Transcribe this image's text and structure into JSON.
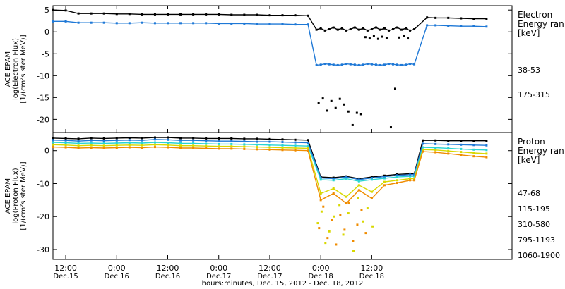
{
  "colors": {
    "black": "#000000",
    "blue": "#1e78d6",
    "cyan": "#2ad4d4",
    "yellow": "#d8d800",
    "orange": "#f08c00"
  },
  "chart_data": [
    {
      "type": "scatter",
      "panel": "electron",
      "ylabel": [
        "ACE EPAM",
        "log(Electron Flux)",
        "[1/(cm²s ster MeV)]"
      ],
      "ylim": [
        -23,
        6
      ],
      "yticks": [
        5,
        0,
        -5,
        -10,
        -15,
        -20
      ],
      "legend_title": [
        "Electron",
        "Energy ran",
        "[keV]"
      ],
      "series": [
        {
          "name": "38-53",
          "color": "black",
          "x": [
            0,
            3,
            6,
            9,
            12,
            15,
            18,
            21,
            24,
            27,
            30,
            33,
            36,
            39,
            42,
            45,
            48,
            51,
            54,
            57,
            60,
            62,
            63,
            64,
            65,
            66,
            67,
            68,
            69,
            70,
            71,
            72,
            73,
            74,
            75,
            76,
            77,
            78,
            79,
            80,
            81,
            82,
            83,
            84,
            85,
            88,
            90,
            93,
            96,
            99,
            102
          ],
          "y": [
            5.0,
            4.9,
            4.2,
            4.2,
            4.2,
            4.1,
            4.1,
            4.0,
            4.0,
            4.0,
            4.0,
            4.0,
            4.0,
            4.0,
            3.9,
            3.9,
            3.9,
            3.8,
            3.8,
            3.8,
            3.7,
            0.5,
            0.8,
            0.3,
            0.6,
            1.0,
            0.5,
            0.8,
            0.3,
            0.6,
            1.0,
            0.5,
            0.8,
            0.3,
            0.6,
            1.0,
            0.5,
            0.8,
            0.3,
            0.6,
            1.0,
            0.5,
            0.8,
            0.3,
            0.6,
            3.3,
            3.2,
            3.2,
            3.1,
            3.0,
            3.0
          ]
        },
        {
          "name": "175-315",
          "color": "blue",
          "x": [
            0,
            3,
            6,
            9,
            12,
            15,
            18,
            21,
            24,
            27,
            30,
            33,
            36,
            39,
            42,
            45,
            48,
            51,
            54,
            57,
            60,
            62,
            63,
            64,
            65,
            66,
            67,
            68,
            69,
            70,
            71,
            72,
            73,
            74,
            75,
            76,
            77,
            78,
            79,
            80,
            81,
            82,
            83,
            84,
            85,
            88,
            90,
            93,
            96,
            99,
            102
          ],
          "y": [
            2.4,
            2.4,
            2.1,
            2.1,
            2.1,
            2.0,
            2.0,
            2.1,
            2.0,
            2.0,
            2.0,
            2.0,
            2.0,
            1.9,
            1.9,
            1.9,
            1.8,
            1.8,
            1.8,
            1.7,
            1.7,
            -7.6,
            -7.5,
            -7.3,
            -7.4,
            -7.5,
            -7.6,
            -7.5,
            -7.3,
            -7.4,
            -7.5,
            -7.6,
            -7.5,
            -7.3,
            -7.4,
            -7.5,
            -7.6,
            -7.5,
            -7.3,
            -7.4,
            -7.5,
            -7.6,
            -7.5,
            -7.3,
            -7.4,
            1.5,
            1.5,
            1.4,
            1.3,
            1.3,
            1.2
          ]
        },
        {
          "name": "38-53",
          "color": "black",
          "scatter": true,
          "x": [
            62.5,
            63.5,
            64.5,
            65.5,
            66.5,
            67.5,
            68.5,
            69.5,
            70.5,
            71.5,
            72.5,
            73.5,
            74.5,
            75.5,
            76.5,
            77.5,
            78.5,
            79.5,
            80.5,
            81.5,
            82.5,
            83.5
          ],
          "y": [
            -16.2,
            -15.2,
            -18.0,
            -15.8,
            -17.4,
            -15.3,
            -16.6,
            -18.2,
            -21.3,
            -18.5,
            -18.8,
            -1.2,
            -1.5,
            -0.9,
            -1.6,
            -1.1,
            -1.4,
            -21.8,
            -13.0,
            -1.3,
            -1.0,
            -1.5
          ]
        }
      ]
    },
    {
      "type": "scatter",
      "panel": "proton",
      "ylabel": [
        "ACE EPAM",
        "log(Proton Flux)",
        "[1/(cm²s ster MeV)]"
      ],
      "ylim": [
        -33,
        5.5
      ],
      "yticks": [
        0,
        -10,
        -20,
        -30
      ],
      "legend_title": [
        "Proton",
        "Energy ran",
        "[keV]"
      ],
      "series": [
        {
          "name": "47-68",
          "color": "black",
          "x": [
            0,
            3,
            6,
            9,
            12,
            15,
            18,
            21,
            24,
            27,
            30,
            33,
            36,
            39,
            42,
            45,
            48,
            51,
            54,
            57,
            60,
            63,
            66,
            69,
            72,
            75,
            78,
            81,
            84,
            85,
            87,
            90,
            93,
            96,
            99,
            102
          ],
          "y": [
            3.8,
            3.7,
            3.6,
            3.8,
            3.7,
            3.8,
            3.9,
            3.8,
            4.0,
            4.0,
            3.8,
            3.8,
            3.7,
            3.7,
            3.7,
            3.6,
            3.6,
            3.5,
            3.4,
            3.3,
            3.2,
            -8.0,
            -8.2,
            -7.8,
            -8.5,
            -8.0,
            -7.6,
            -7.2,
            -7.0,
            -7.0,
            3.1,
            3.1,
            3.0,
            3.0,
            3.0,
            3.0
          ]
        },
        {
          "name": "115-195",
          "color": "blue",
          "x": [
            0,
            3,
            6,
            9,
            12,
            15,
            18,
            21,
            24,
            27,
            30,
            33,
            36,
            39,
            42,
            45,
            48,
            51,
            54,
            57,
            60,
            63,
            66,
            69,
            72,
            75,
            78,
            81,
            84,
            85,
            87,
            90,
            93,
            96,
            99,
            102
          ],
          "y": [
            3.2,
            3.1,
            2.9,
            3.1,
            3.0,
            3.1,
            3.2,
            3.1,
            3.4,
            3.3,
            3.1,
            3.1,
            3.0,
            2.9,
            2.9,
            2.8,
            2.7,
            2.7,
            2.6,
            2.5,
            2.4,
            -8.3,
            -8.5,
            -8.0,
            -8.8,
            -8.3,
            -7.9,
            -7.5,
            -7.3,
            -7.3,
            2.1,
            2.0,
            1.9,
            1.8,
            1.7,
            1.6
          ]
        },
        {
          "name": "310-580",
          "color": "cyan",
          "x": [
            0,
            3,
            6,
            9,
            12,
            15,
            18,
            21,
            24,
            27,
            30,
            33,
            36,
            39,
            42,
            45,
            48,
            51,
            54,
            57,
            60,
            63,
            66,
            69,
            72,
            75,
            78,
            81,
            84,
            85,
            87,
            90,
            93,
            96,
            99,
            102
          ],
          "y": [
            2.5,
            2.4,
            2.2,
            2.3,
            2.2,
            2.3,
            2.4,
            2.3,
            2.5,
            2.4,
            2.2,
            2.2,
            2.1,
            2.0,
            2.0,
            1.9,
            1.8,
            1.7,
            1.6,
            1.5,
            1.4,
            -8.8,
            -9.0,
            -8.5,
            -9.3,
            -8.8,
            -8.4,
            -8.0,
            -7.8,
            -7.8,
            1.0,
            0.9,
            0.7,
            0.5,
            0.3,
            0.2
          ]
        },
        {
          "name": "795-1193",
          "color": "yellow",
          "x": [
            0,
            3,
            6,
            9,
            12,
            15,
            18,
            21,
            24,
            27,
            30,
            33,
            36,
            39,
            42,
            45,
            48,
            51,
            54,
            57,
            60,
            63,
            66,
            69,
            72,
            75,
            78,
            81,
            84,
            85,
            87,
            90,
            93,
            96,
            99,
            102
          ],
          "y": [
            1.8,
            1.7,
            1.5,
            1.6,
            1.5,
            1.6,
            1.7,
            1.6,
            1.8,
            1.7,
            1.5,
            1.5,
            1.4,
            1.3,
            1.3,
            1.2,
            1.1,
            1.0,
            0.9,
            0.8,
            0.7,
            -13.0,
            -11.5,
            -14.0,
            -10.5,
            -12.5,
            -9.5,
            -9.0,
            -8.5,
            -8.5,
            0.3,
            0.2,
            -0.1,
            -0.4,
            -0.7,
            -0.9
          ]
        },
        {
          "name": "1060-1900",
          "color": "orange",
          "x": [
            0,
            3,
            6,
            9,
            12,
            15,
            18,
            21,
            24,
            27,
            30,
            33,
            36,
            39,
            42,
            45,
            48,
            51,
            54,
            57,
            60,
            63,
            66,
            69,
            72,
            75,
            78,
            81,
            84,
            85,
            87,
            90,
            93,
            96,
            99,
            102
          ],
          "y": [
            1.1,
            1.0,
            0.8,
            0.9,
            0.8,
            0.9,
            1.0,
            0.9,
            1.1,
            1.0,
            0.8,
            0.8,
            0.7,
            0.6,
            0.6,
            0.5,
            0.4,
            0.3,
            0.2,
            0.1,
            0.0,
            -15.0,
            -13.0,
            -16.0,
            -12.0,
            -14.5,
            -10.5,
            -9.8,
            -9.0,
            -9.0,
            -0.3,
            -0.5,
            -0.9,
            -1.3,
            -1.7,
            -2.0
          ]
        },
        {
          "name": "795-1193",
          "color": "yellow",
          "scatter": true,
          "x": [
            62.3,
            63.2,
            64.1,
            65.0,
            66.2,
            67.4,
            68.3,
            69.5,
            70.7,
            71.8,
            72.9,
            74.0,
            75.2
          ],
          "y": [
            -22.0,
            -18.5,
            -28.0,
            -24.5,
            -20.0,
            -16.5,
            -25.5,
            -19.0,
            -30.5,
            -14.5,
            -21.5,
            -17.5,
            -23.0
          ]
        },
        {
          "name": "1060-1900",
          "color": "orange",
          "scatter": true,
          "x": [
            62.6,
            63.6,
            64.6,
            65.6,
            66.6,
            67.6,
            68.6,
            69.6,
            70.6,
            71.6,
            72.6,
            73.6
          ],
          "y": [
            -23.5,
            -17.0,
            -26.5,
            -21.0,
            -28.5,
            -19.5,
            -24.0,
            -16.0,
            -27.5,
            -22.5,
            -18.0,
            -25.0
          ]
        }
      ]
    }
  ],
  "x_axis": {
    "xlim": [
      0,
      108
    ],
    "ticks": [
      {
        "h": 3,
        "time": "12:00",
        "date": "Dec.15"
      },
      {
        "h": 15,
        "time": "0:00",
        "date": "Dec.16"
      },
      {
        "h": 27,
        "time": "12:00",
        "date": "Dec.16"
      },
      {
        "h": 39,
        "time": "0:00",
        "date": "Dec.17"
      },
      {
        "h": 51,
        "time": "12:00",
        "date": "Dec.17"
      },
      {
        "h": 63,
        "time": "0:00",
        "date": "Dec.18"
      },
      {
        "h": 75,
        "time": "12:00",
        "date": "Dec.18"
      }
    ],
    "label": "hours:minutes, Dec. 15, 2012 - Dec. 18, 2012"
  }
}
